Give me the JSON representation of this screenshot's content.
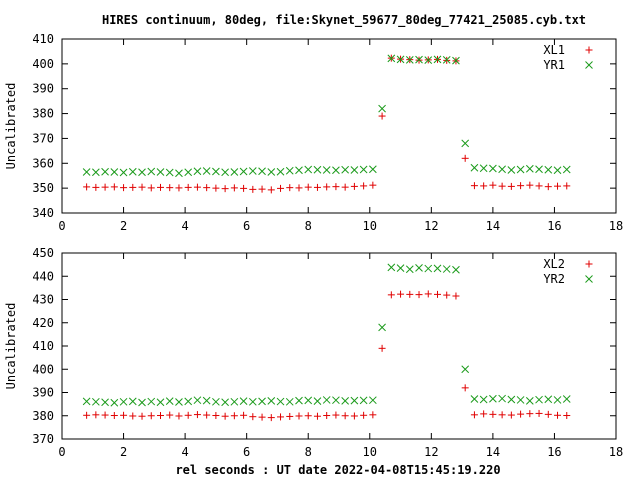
{
  "title": "HIRES continuum, 80deg, file:Skynet_59677_80deg_77421_25085.cyb.txt",
  "colors": {
    "red": "#e00000",
    "green": "#1a9a1a"
  },
  "chart_data": [
    {
      "type": "scatter",
      "ylabel": "Uncalibrated",
      "xlim": [
        0,
        18
      ],
      "ylim": [
        340,
        410
      ],
      "xticks": [
        "0",
        "2",
        "4",
        "6",
        "8",
        "10",
        "12",
        "14",
        "16",
        "18"
      ],
      "yticks": [
        "340",
        "350",
        "360",
        "370",
        "380",
        "390",
        "400",
        "410"
      ],
      "legend_position": "top-right",
      "series": [
        {
          "name": "XL1",
          "marker": "plus",
          "color": "#e00000",
          "x": [
            0.8,
            1.1,
            1.4,
            1.7,
            2.0,
            2.3,
            2.6,
            2.9,
            3.2,
            3.5,
            3.8,
            4.1,
            4.4,
            4.7,
            5.0,
            5.3,
            5.6,
            5.9,
            6.2,
            6.5,
            6.8,
            7.1,
            7.4,
            7.7,
            8.0,
            8.3,
            8.6,
            8.9,
            9.2,
            9.5,
            9.8,
            10.1,
            10.4,
            10.7,
            11.0,
            11.3,
            11.6,
            11.9,
            12.2,
            12.5,
            12.8,
            13.1,
            13.4,
            13.7,
            14.0,
            14.3,
            14.6,
            14.9,
            15.2,
            15.5,
            15.8,
            16.1,
            16.4
          ],
          "y": [
            350.5,
            350.3,
            350.4,
            350.5,
            350.2,
            350.3,
            350.4,
            350.1,
            350.3,
            350.2,
            350.1,
            350.3,
            350.4,
            350.2,
            350.0,
            349.8,
            350.1,
            349.9,
            349.5,
            349.6,
            349.3,
            349.9,
            350.2,
            350.1,
            350.4,
            350.3,
            350.5,
            350.6,
            350.4,
            350.7,
            350.9,
            351.2,
            379.0,
            402.3,
            401.9,
            401.7,
            401.5,
            401.6,
            401.8,
            401.4,
            401.2,
            362.0,
            351.0,
            350.9,
            351.2,
            350.8,
            350.7,
            351.0,
            351.2,
            350.9,
            350.6,
            350.8,
            350.9
          ]
        },
        {
          "name": "YR1",
          "marker": "cross",
          "color": "#1a9a1a",
          "x": [
            0.8,
            1.1,
            1.4,
            1.7,
            2.0,
            2.3,
            2.6,
            2.9,
            3.2,
            3.5,
            3.8,
            4.1,
            4.4,
            4.7,
            5.0,
            5.3,
            5.6,
            5.9,
            6.2,
            6.5,
            6.8,
            7.1,
            7.4,
            7.7,
            8.0,
            8.3,
            8.6,
            8.9,
            9.2,
            9.5,
            9.8,
            10.1,
            10.4,
            10.7,
            11.0,
            11.3,
            11.6,
            11.9,
            12.2,
            12.5,
            12.8,
            13.1,
            13.4,
            13.7,
            14.0,
            14.3,
            14.6,
            14.9,
            15.2,
            15.5,
            15.8,
            16.1,
            16.4
          ],
          "y": [
            356.5,
            356.4,
            356.6,
            356.5,
            356.3,
            356.6,
            356.4,
            356.7,
            356.5,
            356.3,
            356.0,
            356.4,
            356.8,
            356.9,
            356.7,
            356.4,
            356.5,
            356.7,
            356.9,
            356.8,
            356.5,
            356.6,
            357.0,
            357.2,
            357.5,
            357.4,
            357.3,
            357.2,
            357.4,
            357.3,
            357.5,
            357.6,
            382.0,
            402.2,
            401.8,
            401.6,
            401.7,
            401.5,
            401.8,
            401.6,
            401.3,
            368.0,
            358.2,
            358.0,
            357.9,
            357.6,
            357.3,
            357.5,
            357.8,
            357.6,
            357.4,
            357.2,
            357.5
          ]
        }
      ]
    },
    {
      "type": "scatter",
      "ylabel": "Uncalibrated",
      "xlabel": "rel seconds : UT date 2022-04-08T15:45:19.220",
      "xlim": [
        0,
        18
      ],
      "ylim": [
        370,
        450
      ],
      "xticks": [
        "0",
        "2",
        "4",
        "6",
        "8",
        "10",
        "12",
        "14",
        "16",
        "18"
      ],
      "yticks": [
        "370",
        "380",
        "390",
        "400",
        "410",
        "420",
        "430",
        "440",
        "450"
      ],
      "legend_position": "top-right",
      "series": [
        {
          "name": "XL2",
          "marker": "plus",
          "color": "#e00000",
          "x": [
            0.8,
            1.1,
            1.4,
            1.7,
            2.0,
            2.3,
            2.6,
            2.9,
            3.2,
            3.5,
            3.8,
            4.1,
            4.4,
            4.7,
            5.0,
            5.3,
            5.6,
            5.9,
            6.2,
            6.5,
            6.8,
            7.1,
            7.4,
            7.7,
            8.0,
            8.3,
            8.6,
            8.9,
            9.2,
            9.5,
            9.8,
            10.1,
            10.4,
            10.7,
            11.0,
            11.3,
            11.6,
            11.9,
            12.2,
            12.5,
            12.8,
            13.1,
            13.4,
            13.7,
            14.0,
            14.3,
            14.6,
            14.9,
            15.2,
            15.5,
            15.8,
            16.1,
            16.4
          ],
          "y": [
            380.2,
            380.4,
            380.3,
            380.1,
            380.2,
            379.9,
            379.8,
            380.0,
            380.1,
            380.3,
            379.9,
            380.2,
            380.5,
            380.3,
            380.1,
            379.8,
            380.0,
            380.2,
            379.6,
            379.4,
            379.2,
            379.5,
            379.7,
            379.9,
            380.0,
            379.8,
            380.1,
            380.3,
            380.0,
            379.9,
            380.2,
            380.4,
            409.0,
            432.0,
            432.3,
            432.2,
            432.1,
            432.4,
            432.2,
            431.9,
            431.5,
            392.0,
            380.4,
            380.8,
            380.6,
            380.4,
            380.3,
            380.7,
            380.9,
            381.0,
            380.6,
            380.2,
            380.1
          ]
        },
        {
          "name": "YR2",
          "marker": "cross",
          "color": "#1a9a1a",
          "x": [
            0.8,
            1.1,
            1.4,
            1.7,
            2.0,
            2.3,
            2.6,
            2.9,
            3.2,
            3.5,
            3.8,
            4.1,
            4.4,
            4.7,
            5.0,
            5.3,
            5.6,
            5.9,
            6.2,
            6.5,
            6.8,
            7.1,
            7.4,
            7.7,
            8.0,
            8.3,
            8.6,
            8.9,
            9.2,
            9.5,
            9.8,
            10.1,
            10.4,
            10.7,
            11.0,
            11.3,
            11.6,
            11.9,
            12.2,
            12.5,
            12.8,
            13.1,
            13.4,
            13.7,
            14.0,
            14.3,
            14.6,
            14.9,
            15.2,
            15.5,
            15.8,
            16.1,
            16.4
          ],
          "y": [
            386.2,
            386.0,
            385.8,
            385.6,
            386.0,
            386.2,
            385.7,
            386.1,
            385.8,
            386.3,
            385.9,
            386.2,
            386.7,
            386.5,
            386.0,
            385.8,
            386.0,
            386.3,
            386.0,
            386.2,
            386.4,
            386.1,
            386.0,
            386.5,
            386.6,
            386.3,
            386.8,
            386.7,
            386.4,
            386.5,
            386.6,
            386.7,
            418.0,
            443.8,
            443.5,
            443.0,
            443.6,
            443.3,
            443.4,
            443.1,
            442.8,
            400.0,
            387.2,
            387.0,
            387.3,
            387.4,
            387.0,
            386.8,
            386.4,
            386.9,
            387.1,
            386.8,
            387.2
          ]
        }
      ]
    }
  ]
}
